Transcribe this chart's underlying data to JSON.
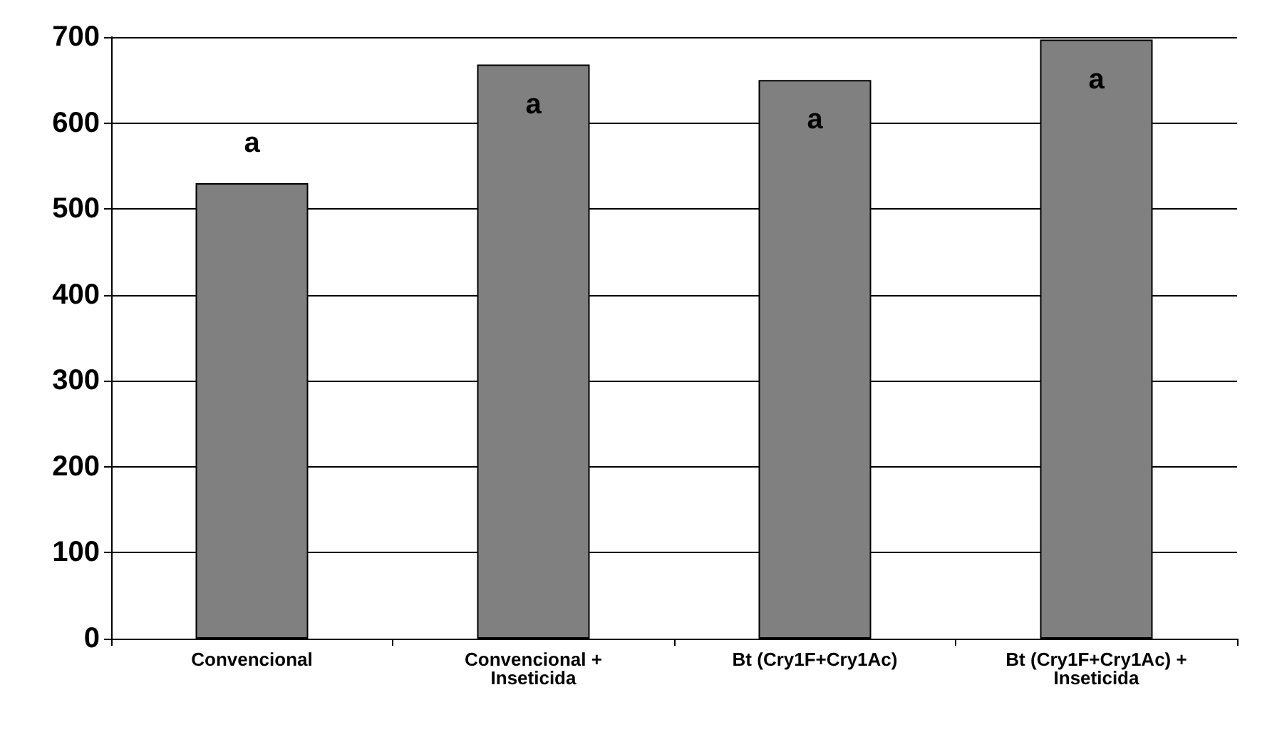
{
  "chart_data": {
    "type": "bar",
    "categories": [
      "Convencional",
      "Convencional + Inseticida",
      "Bt (Cry1F+Cry1Ac)",
      "Bt (Cry1F+Cry1Ac) + Inseticida"
    ],
    "values": [
      530,
      668,
      650,
      697
    ],
    "color": "#808080",
    "ylim": [
      0,
      700
    ],
    "yticks": [
      0,
      100,
      200,
      300,
      400,
      500,
      600,
      700
    ],
    "grid": "y",
    "value_labels": [
      "a",
      "a",
      "a",
      "a"
    ]
  }
}
